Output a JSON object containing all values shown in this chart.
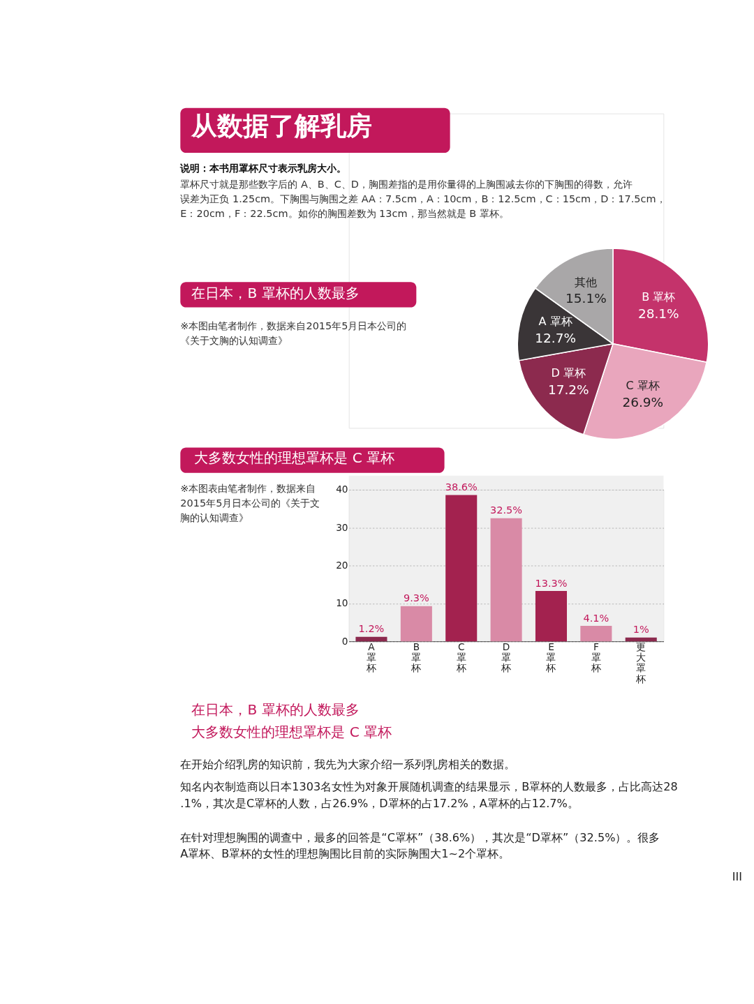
{
  "chart_data": [
    {
      "type": "pie",
      "title": "在日本，B 罩杯的人数最多",
      "categories": [
        "B 罩杯",
        "C 罩杯",
        "D 罩杯",
        "A 罩杯",
        "其他"
      ],
      "values": [
        28.1,
        26.9,
        17.2,
        12.7,
        15.1
      ],
      "value_labels": [
        "28.1%",
        "26.9%",
        "17.2%",
        "12.7%",
        "15.1%"
      ],
      "colors": [
        "#c4336b",
        "#e9a6bd",
        "#8c2a4e",
        "#3a3537",
        "#a9a7a8"
      ],
      "annotations": [
        "从数据了解乳房",
        "说明：本书用罩杯尺寸表示乳房大小。",
        "罩杯尺寸就是那些数字后的 A、B、C、D，胸围差指的是用你量得的上胸围减去你的下胸围的得数，允许误差为正负 1.25cm。下胸围与胸围之差 AA：7.5cm，A：10cm，B：12.5cm，C：15cm，D：17.5cm， E：20cm，F：22.5cm。如你的胸围差数为 13cm，那当然就是 B 罩杯。",
        "※本图由笔者制作，数据来自2015年5月日本公司的《关于文胸的认知调查》"
      ]
    },
    {
      "type": "bar",
      "title": "大多数女性的理想罩杯是 C 罩杯",
      "categories": [
        "A罩杯",
        "B罩杯",
        "C罩杯",
        "D罩杯",
        "E罩杯",
        "F罩杯",
        "更大罩杯"
      ],
      "values": [
        1.2,
        9.3,
        38.6,
        32.5,
        13.3,
        4.1,
        1
      ],
      "value_labels": [
        "1.2%",
        "9.3%",
        "38.6%",
        "32.5%",
        "13.3%",
        "4.1%",
        "1%"
      ],
      "colors": [
        "#8c2a4e",
        "#d98aa6",
        "#a3224f",
        "#d98aa6",
        "#a3224f",
        "#d98aa6",
        "#8c2a4e"
      ],
      "ylim": [
        0,
        40
      ],
      "yticks": [
        0,
        10,
        20,
        30,
        40
      ],
      "grid": "y",
      "annotations": [
        "※本图表由笔者制作，数据来自2015年5月日本公司的《关于文胸的认知调查》",
        "在日本，B 罩杯的人数最多",
        "大多数女性的理想罩杯是 C 罩杯",
        "在开始介绍乳房的知识前，我先为大家介绍一系列乳房相关的数据。",
        "知名内衣制造商以日本1303名女性为对象开展随机调查的结果显示，B罩杯的人数最多，占比高达28.1%，其次是C罩杯的人数，占26.9%，D罩杯的占17.2%，A罩杯的占12.7%。",
        "在针对理想胸围的调查中，最多的回答是“C罩杯”（38.6%），其次是“D罩杯”（32.5%）。很多A罩杯、B罩杯的女性的理想胸围比目前的实际胸围大1~2个罩杯。",
        "III"
      ]
    }
  ]
}
